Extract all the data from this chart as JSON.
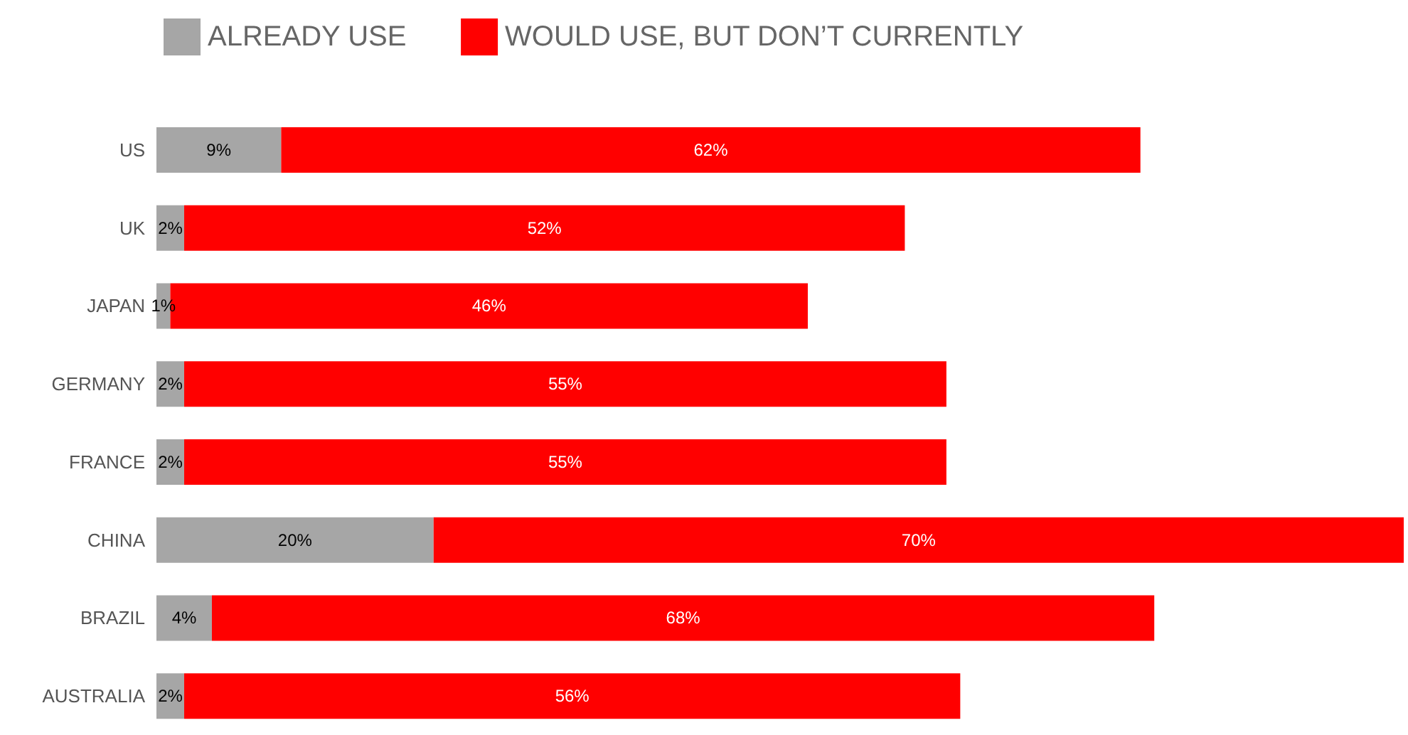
{
  "chart_data": {
    "type": "bar",
    "orientation": "horizontal",
    "stacked": true,
    "legend": "top left",
    "categories": [
      "US",
      "UK",
      "JAPAN",
      "GERMANY",
      "FRANCE",
      "CHINA",
      "BRAZIL",
      "AUSTRALIA"
    ],
    "series": [
      {
        "name": "ALREADY USE",
        "color": "#a6a6a6",
        "values": [
          9,
          2,
          1,
          2,
          2,
          20,
          4,
          2
        ],
        "value_labels": [
          "9%",
          "2%",
          "1%",
          "2%",
          "2%",
          "20%",
          "4%",
          "2%"
        ]
      },
      {
        "name": "WOULD USE, BUT DON’T CURRENTLY",
        "color": "#ff0000",
        "values": [
          62,
          52,
          46,
          55,
          55,
          70,
          68,
          56
        ],
        "value_labels": [
          "62%",
          "52%",
          "46%",
          "55%",
          "55%",
          "70%",
          "68%",
          "56%"
        ]
      }
    ]
  }
}
